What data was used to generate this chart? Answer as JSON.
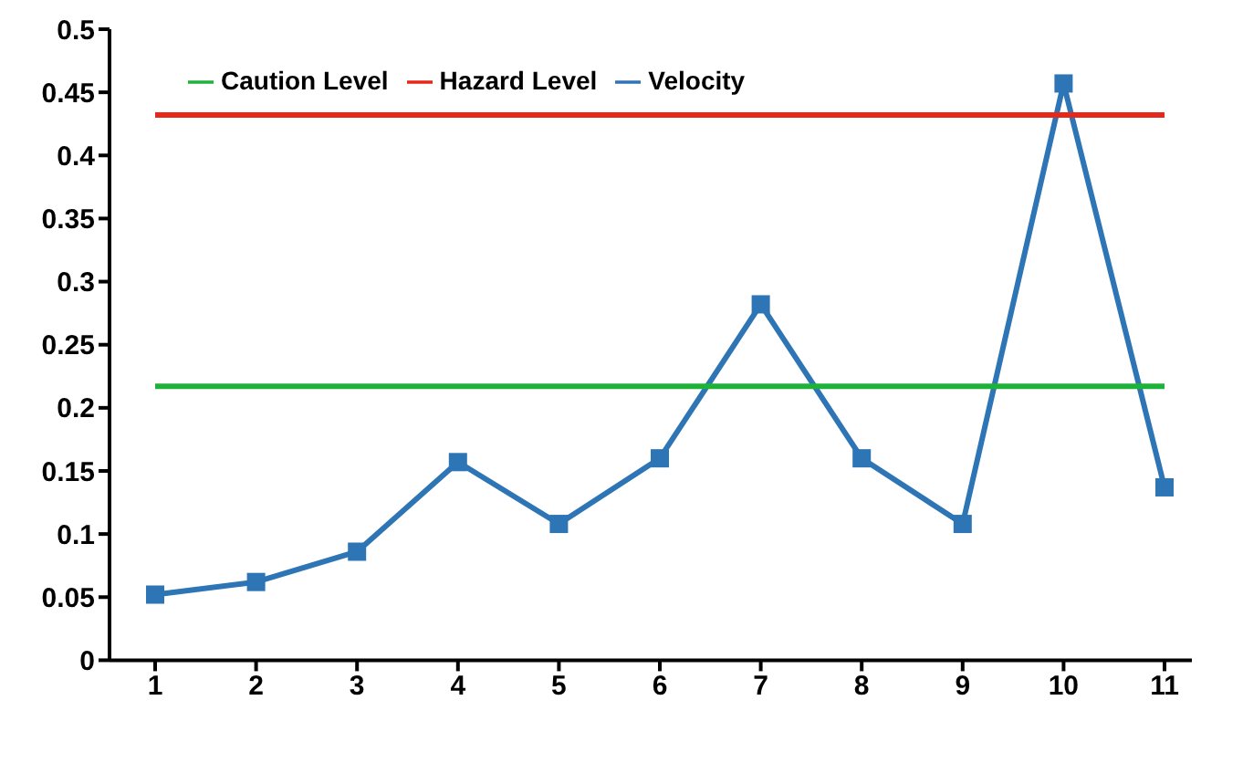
{
  "chart_data": {
    "type": "line",
    "categories": [
      "1",
      "2",
      "3",
      "4",
      "5",
      "6",
      "7",
      "8",
      "9",
      "10",
      "11"
    ],
    "series": [
      {
        "name": "Velocity",
        "color": "#2e75b6",
        "marker": "square",
        "values": [
          0.052,
          0.062,
          0.086,
          0.157,
          0.108,
          0.16,
          0.282,
          0.16,
          0.108,
          0.457,
          0.137
        ]
      },
      {
        "name": "Caution Level",
        "color": "#1fb23a",
        "marker": "none",
        "values": [
          0.217,
          0.217,
          0.217,
          0.217,
          0.217,
          0.217,
          0.217,
          0.217,
          0.217,
          0.217,
          0.217
        ]
      },
      {
        "name": "Hazard Level",
        "color": "#e8271b",
        "marker": "none",
        "values": [
          0.432,
          0.432,
          0.432,
          0.432,
          0.432,
          0.432,
          0.432,
          0.432,
          0.432,
          0.432,
          0.432
        ]
      }
    ],
    "ylim": [
      0,
      0.5
    ],
    "yticks": [
      0,
      0.05,
      0.1,
      0.15,
      0.2,
      0.25,
      0.3,
      0.35,
      0.4,
      0.45,
      0.5
    ],
    "grid": false,
    "legend": "top left"
  }
}
